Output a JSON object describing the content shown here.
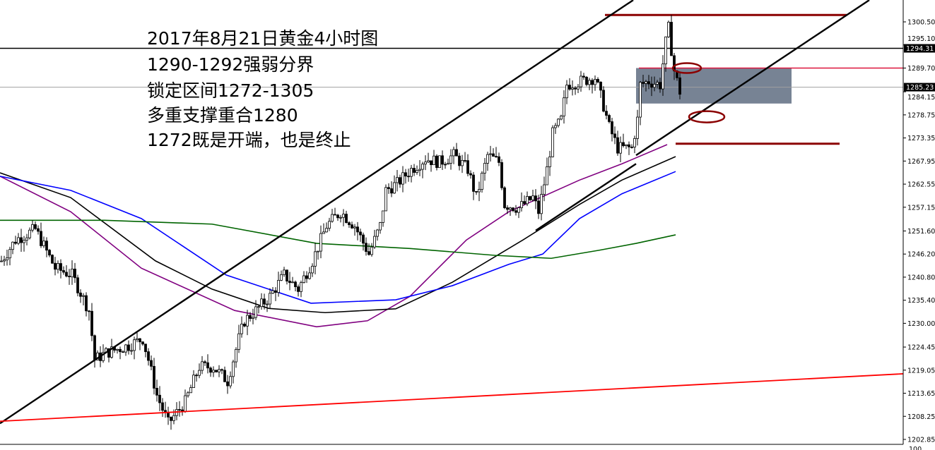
{
  "annotations": [
    "2017年8月21日黄金4小时图",
    "1290-1292强弱分界",
    "锁定区间1272-1305",
    "多重支撑重合1280",
    "1272既是开端，也是终止"
  ],
  "chart_data": {
    "type": "candlestick",
    "title": "2017年8月21日黄金4小时图",
    "ylim": [
      1202.85,
      1305.6
    ],
    "xlim": [
      0,
      319.5
    ],
    "grid": false,
    "y_ticks": [
      "1300.50",
      "1295.10",
      "1289.70",
      "1284.15",
      "1278.75",
      "1273.35",
      "1267.95",
      "1262.55",
      "1257.15",
      "1251.60",
      "1246.20",
      "1240.80",
      "1235.40",
      "1230.00",
      "1224.45",
      "1219.05",
      "1213.65",
      "1208.25",
      "1202.85"
    ],
    "price_labels": [
      {
        "value": "1294.31",
        "color": "#000000"
      },
      {
        "value": "1285.23",
        "color": "#000000"
      }
    ],
    "subwindow_label": "100",
    "price_path": [
      [
        0,
        1244.6
      ],
      [
        5,
        1249.5
      ],
      [
        12,
        1252
      ],
      [
        19,
        1242.9
      ],
      [
        25,
        1241.3
      ],
      [
        31,
        1233
      ],
      [
        33,
        1221.5
      ],
      [
        37,
        1223.1
      ],
      [
        45,
        1224.8
      ],
      [
        50,
        1226.4
      ],
      [
        52,
        1221.5
      ],
      [
        55,
        1213.2
      ],
      [
        59,
        1206.6
      ],
      [
        65,
        1211.6
      ],
      [
        70,
        1219.8
      ],
      [
        75,
        1219.8
      ],
      [
        80,
        1216.5
      ],
      [
        84,
        1226.4
      ],
      [
        86,
        1230.6
      ],
      [
        90,
        1233
      ],
      [
        95,
        1236.3
      ],
      [
        100,
        1241.3
      ],
      [
        105,
        1238
      ],
      [
        110,
        1244.6
      ],
      [
        115,
        1252.8
      ],
      [
        120,
        1256.1
      ],
      [
        125,
        1252.8
      ],
      [
        130,
        1246.2
      ],
      [
        134,
        1252.8
      ],
      [
        136,
        1261.1
      ],
      [
        140,
        1262.7
      ],
      [
        145,
        1266
      ],
      [
        150,
        1268.5
      ],
      [
        155,
        1267.7
      ],
      [
        160,
        1269.3
      ],
      [
        165,
        1266
      ],
      [
        168,
        1259.4
      ],
      [
        172,
        1269.3
      ],
      [
        176,
        1267.7
      ],
      [
        178,
        1257.8
      ],
      [
        183,
        1257
      ],
      [
        188,
        1259.4
      ],
      [
        190,
        1256.1
      ],
      [
        193,
        1266
      ],
      [
        195,
        1274.3
      ],
      [
        198,
        1277.6
      ],
      [
        200,
        1285.8
      ],
      [
        205,
        1286.6
      ],
      [
        210,
        1287.5
      ],
      [
        213,
        1280.9
      ],
      [
        215,
        1275.9
      ],
      [
        218,
        1271
      ],
      [
        223,
        1271
      ],
      [
        225,
        1277.6
      ],
      [
        226,
        1285.8
      ],
      [
        229,
        1286.6
      ],
      [
        233,
        1285.8
      ],
      [
        235,
        1295.7
      ],
      [
        236,
        1299
      ],
      [
        238,
        1289.1
      ],
      [
        240,
        1284.2
      ]
    ],
    "moving_averages": [
      {
        "color": "#800080",
        "points": [
          [
            0,
            1264.4
          ],
          [
            25,
            1256.1
          ],
          [
            50,
            1242.9
          ],
          [
            83,
            1233
          ],
          [
            112,
            1229.2
          ],
          [
            130,
            1230.6
          ],
          [
            145,
            1236.3
          ],
          [
            165,
            1249.5
          ],
          [
            180,
            1256.1
          ],
          [
            205,
            1263.5
          ],
          [
            220,
            1267.3
          ],
          [
            236,
            1271.8
          ]
        ]
      },
      {
        "color": "#000000",
        "points": [
          [
            0,
            1265.2
          ],
          [
            25,
            1259.4
          ],
          [
            55,
            1244.6
          ],
          [
            75,
            1238
          ],
          [
            95,
            1233.5
          ],
          [
            115,
            1232.5
          ],
          [
            140,
            1233.4
          ],
          [
            160,
            1239.6
          ],
          [
            185,
            1249.5
          ],
          [
            205,
            1257.8
          ],
          [
            220,
            1263.5
          ],
          [
            239,
            1269
          ]
        ]
      },
      {
        "color": "#0000ff",
        "points": [
          [
            0,
            1264.4
          ],
          [
            25,
            1261.1
          ],
          [
            50,
            1254.5
          ],
          [
            80,
            1241.3
          ],
          [
            110,
            1234.7
          ],
          [
            140,
            1235.5
          ],
          [
            160,
            1238.8
          ],
          [
            180,
            1243.8
          ],
          [
            192,
            1246.2
          ],
          [
            205,
            1254.5
          ],
          [
            220,
            1260.3
          ],
          [
            239,
            1265.5
          ]
        ]
      },
      {
        "color": "#006400",
        "points": [
          [
            0,
            1254.1
          ],
          [
            37,
            1254.1
          ],
          [
            75,
            1253.2
          ],
          [
            112,
            1248.7
          ],
          [
            145,
            1247.5
          ],
          [
            175,
            1245.9
          ],
          [
            195,
            1245.2
          ],
          [
            212,
            1247.1
          ],
          [
            225,
            1248.7
          ],
          [
            239,
            1250.7
          ]
        ]
      }
    ],
    "trendlines": [
      {
        "color": "#000000",
        "from": [
          0,
          1206.6
        ],
        "to": [
          224,
          1305.6
        ]
      },
      {
        "color": "#000000",
        "from": [
          225,
          1269.3
        ],
        "to": [
          307.5,
          1305.6
        ]
      },
      {
        "color": "#000000",
        "from": [
          189.5,
          1251.7
        ],
        "to": [
          225,
          1267.3
        ]
      },
      {
        "color": "#ff0000",
        "from": [
          0,
          1207.1
        ],
        "to": [
          319.5,
          1218.2
        ]
      }
    ],
    "horizontal_lines": [
      {
        "color": "#000000",
        "price": 1294.31,
        "from": 0,
        "to": 319.5
      },
      {
        "color": "#a0a0a0",
        "price": 1285.23,
        "from": 0,
        "to": 319.5
      },
      {
        "color": "#8b0000",
        "price": 1302.1,
        "from": 214,
        "to": 299.5
      },
      {
        "color": "#dc143c",
        "price": 1289.7,
        "from": 226,
        "to": 319.5
      },
      {
        "color": "#8b0000",
        "price": 1272.0,
        "from": 239,
        "to": 297
      }
    ],
    "ellipses": [
      {
        "color": "#8b0000",
        "center": [
          243,
          1289.7
        ]
      },
      {
        "color": "#8b0000",
        "center": [
          250,
          1278.3
        ]
      }
    ],
    "zone": {
      "color": "#4a5a70",
      "bars": [
        225,
        280
      ],
      "prices": [
        1281.4,
        1289.7
      ]
    }
  }
}
